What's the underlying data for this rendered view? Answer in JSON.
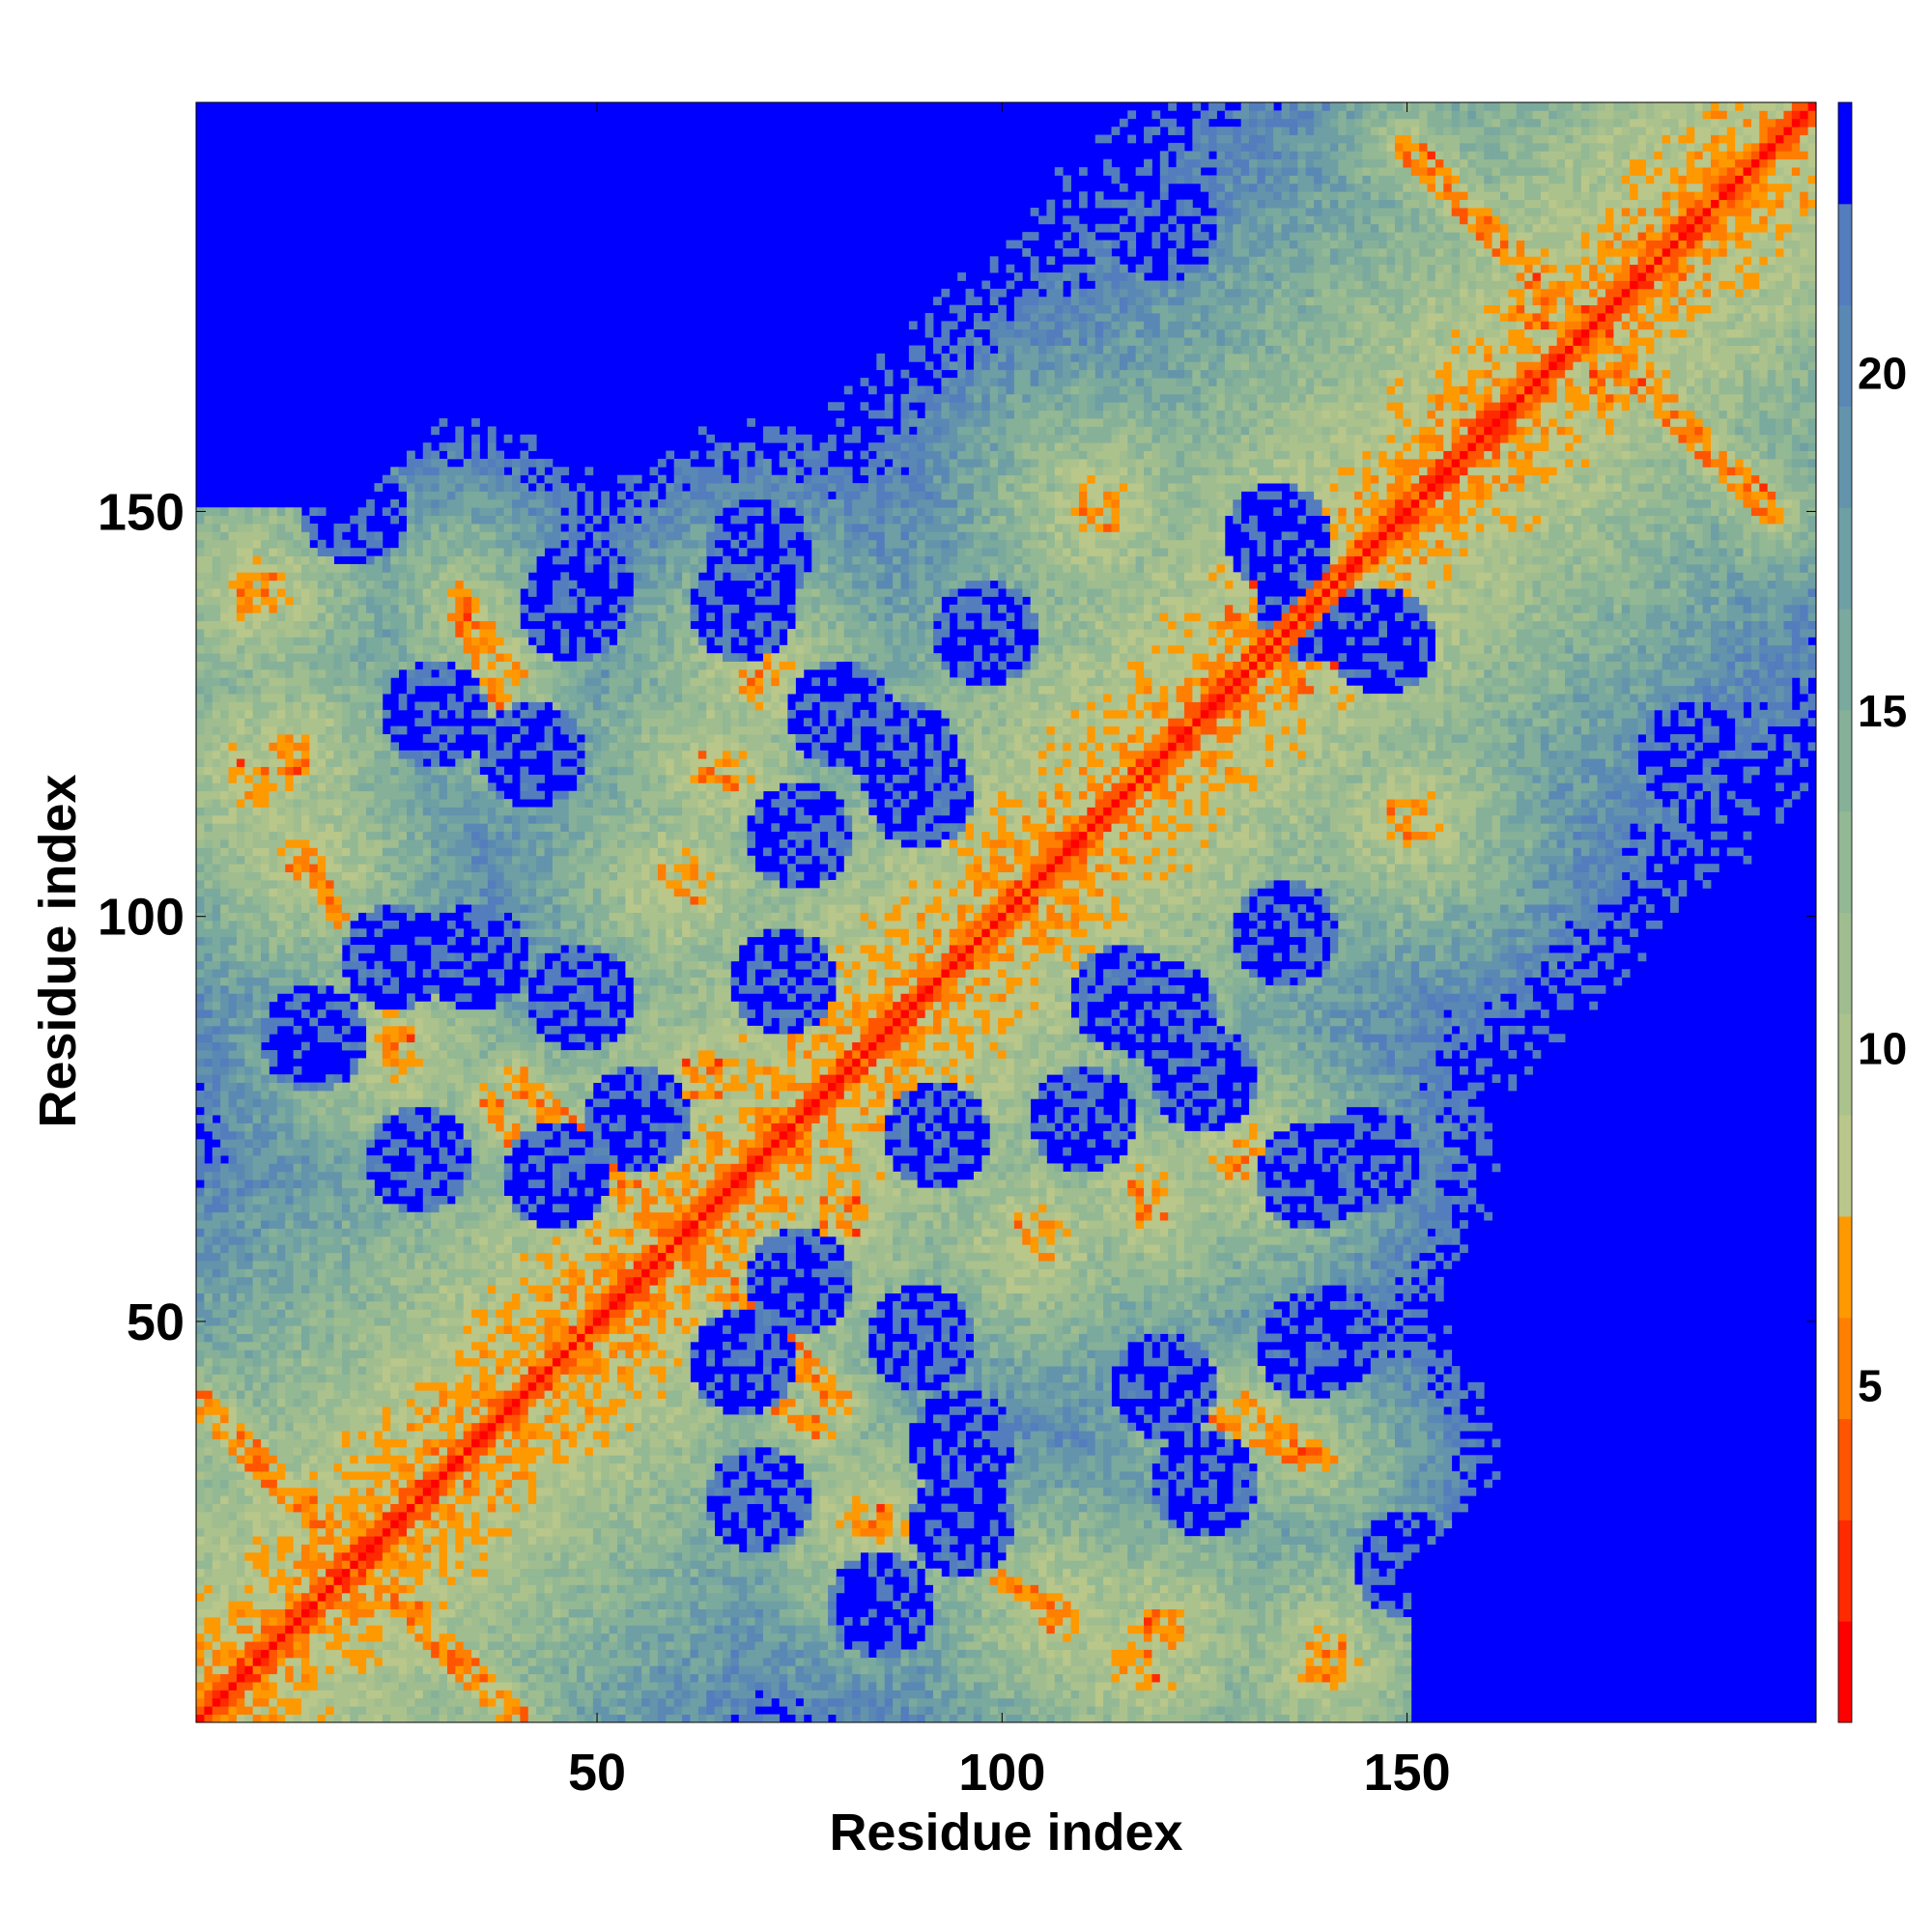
{
  "chart_data": {
    "type": "heatmap",
    "title": "",
    "xlabel": "Residue index",
    "ylabel": "Residue index",
    "n_residues": 200,
    "xlim": [
      0.5,
      200.5
    ],
    "ylim": [
      0.5,
      200.5
    ],
    "x_ticks": [
      50,
      100,
      150
    ],
    "x_tick_labels": [
      "50",
      "100",
      "150"
    ],
    "y_ticks": [
      50,
      100,
      150
    ],
    "y_tick_labels": [
      "50",
      "100",
      "150"
    ],
    "colorbar": {
      "range": [
        0,
        24
      ],
      "ticks": [
        5,
        10,
        15,
        20
      ],
      "tick_labels": [
        "5",
        "10",
        "15",
        "20"
      ],
      "bins": [
        {
          "min": 0,
          "max": 1.5,
          "color": "#ff0000"
        },
        {
          "min": 1.5,
          "max": 3,
          "color": "#ff2a00"
        },
        {
          "min": 3,
          "max": 4.5,
          "color": "#ff5500"
        },
        {
          "min": 4.5,
          "max": 6,
          "color": "#ff7f00"
        },
        {
          "min": 6,
          "max": 7.5,
          "color": "#ff9900"
        },
        {
          "min": 7.5,
          "max": 9,
          "color": "#b9c78a"
        },
        {
          "min": 9,
          "max": 10.5,
          "color": "#acc28d"
        },
        {
          "min": 10.5,
          "max": 12,
          "color": "#a0bd90"
        },
        {
          "min": 12,
          "max": 13.5,
          "color": "#93b894"
        },
        {
          "min": 13.5,
          "max": 15,
          "color": "#86b198"
        },
        {
          "min": 15,
          "max": 16.5,
          "color": "#7aa99e"
        },
        {
          "min": 16.5,
          "max": 18,
          "color": "#6e9fa4"
        },
        {
          "min": 18,
          "max": 19.5,
          "color": "#6394ac"
        },
        {
          "min": 19.5,
          "max": 21,
          "color": "#5a88b4"
        },
        {
          "min": 21,
          "max": 22.5,
          "color": "#537dbd"
        },
        {
          "min": 22.5,
          "max": 24,
          "color": "#0000ff"
        }
      ]
    },
    "series_description_values": {
      "diagonal_distance": 0,
      "background_distance": 24
    },
    "features": {
      "parallel_diagonals": [
        [
          [
            1,
            40
          ],
          [
            40,
            1
          ]
        ],
        [
          [
            40,
            80
          ],
          [
            80,
            40
          ]
        ],
        [
          [
            150,
            195
          ],
          [
            195,
            150
          ]
        ]
      ],
      "anti_diagonals": [
        [
          [
            14,
            28
          ],
          [
            18,
            24
          ]
        ],
        [
          [
            33,
            140
          ],
          [
            40,
            130
          ]
        ],
        [
          [
            128,
            137
          ],
          [
            146,
            130
          ]
        ],
        [
          [
            123,
            40
          ],
          [
            137,
            33
          ]
        ],
        [
          [
            100,
            18
          ],
          [
            108,
            14
          ]
        ],
        [
          [
            72,
            40
          ],
          [
            78,
            36
          ]
        ]
      ],
      "blobs": [
        [
          8,
          140
        ],
        [
          120,
          12
        ],
        [
          140,
          8
        ],
        [
          14,
          107
        ],
        [
          107,
          14
        ],
        [
          25,
          84
        ],
        [
          84,
          25
        ],
        [
          92,
          92
        ],
        [
          80,
          63
        ],
        [
          63,
          80
        ],
        [
          60,
          104
        ],
        [
          104,
          60
        ],
        [
          65,
          118
        ],
        [
          118,
          65
        ],
        [
          130,
          70
        ],
        [
          70,
          130
        ],
        [
          150,
          112
        ],
        [
          112,
          150
        ],
        [
          175,
          165
        ],
        [
          165,
          175
        ],
        [
          180,
          182
        ],
        [
          182,
          180
        ],
        [
          7,
          117
        ],
        [
          117,
          7
        ]
      ],
      "holes": [
        [
          15,
          85
        ],
        [
          35,
          95
        ],
        [
          47,
          138
        ],
        [
          68,
          138
        ],
        [
          88,
          120
        ],
        [
          73,
          92
        ],
        [
          55,
          75
        ],
        [
          45,
          68
        ],
        [
          115,
          90
        ],
        [
          135,
          98
        ],
        [
          138,
          138
        ],
        [
          147,
          134
        ],
        [
          120,
          42
        ],
        [
          140,
          48
        ],
        [
          125,
          30
        ],
        [
          70,
          28
        ],
        [
          95,
          25
        ],
        [
          90,
          48
        ],
        [
          110,
          75
        ],
        [
          125,
          80
        ],
        [
          145,
          70
        ],
        [
          165,
          60
        ],
        [
          175,
          40
        ],
        [
          150,
          20
        ],
        [
          185,
          120
        ],
        [
          180,
          90
        ],
        [
          190,
          30
        ]
      ]
    }
  }
}
